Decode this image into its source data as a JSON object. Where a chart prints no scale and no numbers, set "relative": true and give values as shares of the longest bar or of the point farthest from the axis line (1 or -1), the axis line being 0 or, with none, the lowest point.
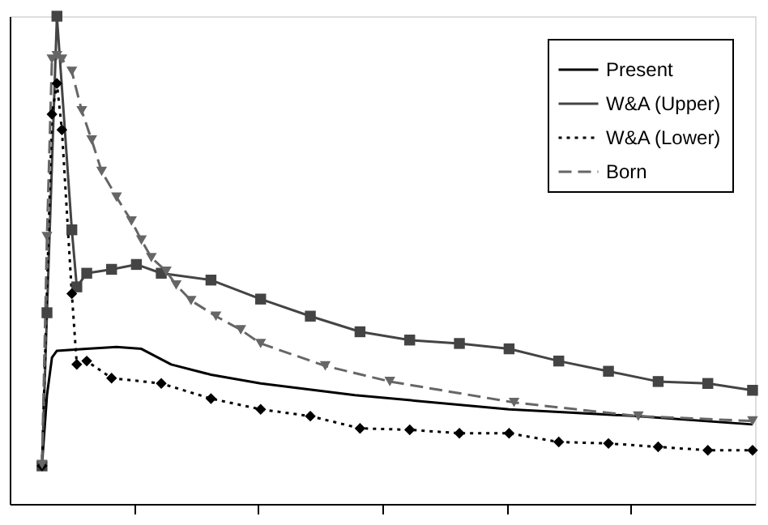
{
  "chart_data": {
    "type": "line",
    "relative": true,
    "grid": false,
    "legend": "top right",
    "categories": [
      null,
      null,
      null,
      null,
      null,
      null,
      null,
      null,
      null,
      null,
      null,
      null,
      null,
      null,
      null,
      null,
      null,
      null,
      null,
      null,
      null,
      null,
      null,
      null,
      null,
      null,
      null,
      null,
      null,
      null,
      null,
      null,
      null,
      null,
      null,
      null,
      null,
      null,
      null,
      null,
      null,
      null,
      null,
      null,
      null,
      null,
      null,
      null,
      null,
      null,
      null,
      null,
      null,
      null,
      null,
      null,
      null,
      null,
      null,
      null,
      null,
      null,
      null,
      null,
      null,
      null,
      null,
      null,
      null,
      null,
      null,
      null,
      null,
      null,
      null,
      null,
      null,
      null,
      null,
      null,
      null,
      null,
      null,
      null,
      null,
      null,
      null,
      null,
      null,
      null,
      null,
      null,
      null,
      null,
      null,
      null,
      null,
      null,
      null,
      null,
      null,
      null,
      null,
      null,
      null,
      null,
      null,
      null,
      null,
      null,
      null,
      null,
      null,
      null,
      null,
      null,
      null,
      null,
      null,
      null,
      null,
      null,
      null,
      null,
      null,
      null,
      null,
      null,
      null,
      null,
      null,
      null,
      null,
      null,
      null,
      null,
      null,
      null,
      null,
      null,
      null,
      null,
      null,
      null,
      null,
      null,
      null,
      null,
      null,
      null
    ],
    "series": [
      {
        "name": "Present",
        "color": "#000000",
        "marker": "none",
        "line_style": "solid",
        "values": [
          null,
          null,
          null,
          null,
          null,
          null,
          0.081,
          0.223,
          0.3,
          0.314,
          null,
          null,
          null,
          null,
          null,
          0.318,
          null,
          null,
          null,
          null,
          null,
          0.322,
          null,
          null,
          null,
          null,
          0.318,
          null,
          null,
          null,
          null,
          null,
          0.286,
          null,
          null,
          null,
          null,
          null,
          null,
          null,
          0.265,
          null,
          null,
          null,
          null,
          null,
          null,
          null,
          null,
          null,
          0.247,
          null,
          null,
          null,
          null,
          null,
          null,
          null,
          null,
          null,
          null,
          null,
          null,
          null,
          null,
          null,
          null,
          null,
          null,
          0.223,
          null,
          null,
          null,
          null,
          null,
          null,
          null,
          null,
          null,
          null,
          null,
          null,
          null,
          null,
          null,
          null,
          null,
          null,
          null,
          null,
          null,
          null,
          null,
          null,
          null,
          null,
          null,
          null,
          null,
          null,
          0.194,
          null,
          null,
          null,
          null,
          null,
          null,
          null,
          null,
          null,
          null,
          null,
          null,
          null,
          null,
          null,
          null,
          null,
          null,
          null,
          null,
          null,
          null,
          null,
          null,
          null,
          0.18,
          null,
          null,
          null,
          null,
          null,
          null,
          null,
          null,
          null,
          null,
          null,
          null,
          null,
          null,
          null,
          null,
          null,
          null,
          null,
          null,
          null,
          null,
          0.163
        ]
      },
      {
        "name": "W&A (Upper)",
        "color": "#444444",
        "marker": "square",
        "line_style": "solid",
        "values": [
          null,
          null,
          null,
          null,
          null,
          null,
          0.078,
          0.392,
          null,
          1,
          null,
          null,
          0.562,
          0.445,
          null,
          0.473,
          null,
          null,
          null,
          null,
          0.481,
          null,
          null,
          null,
          null,
          0.491,
          null,
          null,
          null,
          null,
          0.473,
          null,
          null,
          null,
          null,
          null,
          null,
          null,
          null,
          null,
          0.459,
          null,
          null,
          null,
          null,
          null,
          null,
          null,
          null,
          null,
          0.42,
          null,
          null,
          null,
          null,
          null,
          null,
          null,
          null,
          null,
          0.385,
          null,
          null,
          null,
          null,
          null,
          null,
          null,
          null,
          null,
          0.353,
          null,
          null,
          null,
          null,
          null,
          null,
          null,
          null,
          null,
          0.336,
          null,
          null,
          null,
          null,
          null,
          null,
          null,
          null,
          null,
          0.329,
          null,
          null,
          null,
          null,
          null,
          null,
          null,
          null,
          null,
          0.318,
          null,
          null,
          null,
          null,
          null,
          null,
          null,
          null,
          null,
          0.293,
          null,
          null,
          null,
          null,
          null,
          null,
          null,
          null,
          null,
          0.272,
          null,
          null,
          null,
          null,
          null,
          null,
          null,
          null,
          null,
          0.251,
          null,
          null,
          null,
          null,
          null,
          null,
          null,
          null,
          null,
          0.247,
          null,
          null,
          null,
          null,
          null,
          null,
          null,
          null,
          0.233
        ]
      },
      {
        "name": "W&A (Lower)",
        "color": "#000000",
        "marker": "diamond",
        "line_style": "dotted",
        "values": [
          null,
          null,
          null,
          null,
          null,
          null,
          0.078,
          null,
          0.799,
          0.862,
          0.767,
          null,
          0.431,
          0.286,
          null,
          0.293,
          null,
          null,
          null,
          null,
          0.258,
          null,
          null,
          null,
          null,
          null,
          null,
          null,
          null,
          null,
          0.247,
          null,
          null,
          null,
          null,
          null,
          null,
          null,
          null,
          null,
          0.216,
          null,
          null,
          null,
          null,
          null,
          null,
          null,
          null,
          null,
          0.194,
          null,
          null,
          null,
          null,
          null,
          null,
          null,
          null,
          null,
          0.18,
          null,
          null,
          null,
          null,
          null,
          null,
          null,
          null,
          null,
          0.155,
          null,
          null,
          null,
          null,
          null,
          null,
          null,
          null,
          null,
          0.152,
          null,
          null,
          null,
          null,
          null,
          null,
          null,
          null,
          null,
          0.145,
          null,
          null,
          null,
          null,
          null,
          null,
          null,
          null,
          null,
          0.145,
          null,
          null,
          null,
          null,
          null,
          null,
          null,
          null,
          null,
          0.127,
          null,
          null,
          null,
          null,
          null,
          null,
          null,
          null,
          null,
          0.124,
          null,
          null,
          null,
          null,
          null,
          null,
          null,
          null,
          null,
          0.117,
          null,
          null,
          null,
          null,
          null,
          null,
          null,
          null,
          null,
          0.11,
          null,
          null,
          null,
          null,
          null,
          null,
          null,
          null,
          0.11
        ]
      },
      {
        "name": "Born",
        "color": "#666666",
        "marker": "triangle",
        "line_style": "dashed",
        "values": [
          null,
          null,
          null,
          null,
          null,
          null,
          0.081,
          0.548,
          0.912,
          0.919,
          0.912,
          null,
          0.887,
          null,
          0.806,
          null,
          0.746,
          null,
          0.682,
          null,
          null,
          0.629,
          null,
          null,
          0.58,
          null,
          0.541,
          null,
          0.505,
          null,
          null,
          0.477,
          null,
          0.449,
          null,
          null,
          0.417,
          null,
          null,
          null,
          null,
          0.385,
          null,
          null,
          null,
          null,
          0.357,
          null,
          null,
          null,
          0.329,
          null,
          null,
          null,
          null,
          null,
          null,
          null,
          null,
          null,
          null,
          null,
          null,
          0.283,
          null,
          null,
          null,
          null,
          null,
          null,
          null,
          null,
          null,
          null,
          null,
          null,
          0.251,
          null,
          null,
          null,
          null,
          null,
          null,
          null,
          null,
          null,
          null,
          null,
          null,
          null,
          null,
          null,
          null,
          null,
          null,
          null,
          null,
          null,
          null,
          null,
          null,
          0.208,
          null,
          null,
          null,
          null,
          null,
          null,
          null,
          null,
          null,
          null,
          null,
          null,
          null,
          null,
          null,
          null,
          null,
          null,
          null,
          null,
          null,
          null,
          null,
          null,
          0.18,
          null,
          null,
          null,
          null,
          null,
          null,
          null,
          null,
          null,
          null,
          null,
          null,
          null,
          null,
          null,
          null,
          null,
          null,
          null,
          null,
          null,
          null,
          0.17
        ]
      }
    ]
  }
}
